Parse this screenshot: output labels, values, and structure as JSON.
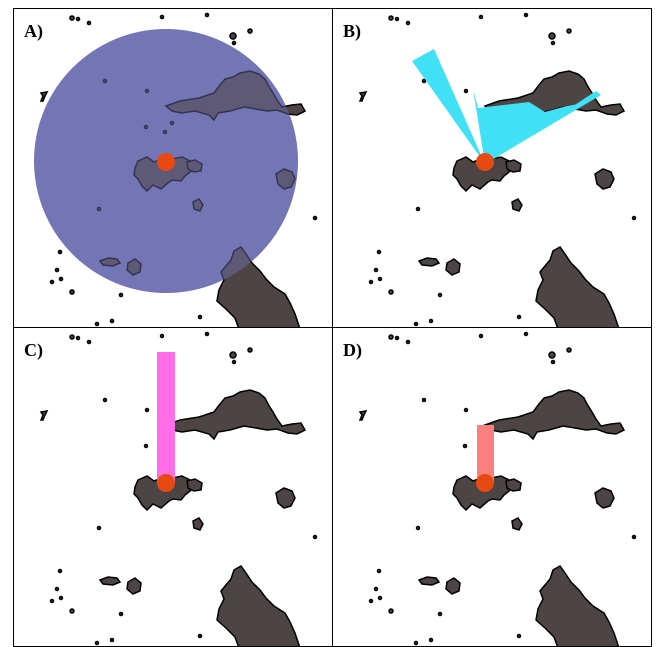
{
  "panels": [
    {
      "label": "A)",
      "overlay": "circle",
      "overlay_color": "#7375b5"
    },
    {
      "label": "B)",
      "overlay": "wedge",
      "overlay_color": "#40e0f5"
    },
    {
      "label": "C)",
      "overlay": "long-bar",
      "overlay_color": "#ff6ee6"
    },
    {
      "label": "D)",
      "overlay": "short-bar",
      "overlay_color": "#fa8080"
    }
  ],
  "colors": {
    "land": "#4d4544",
    "outline": "#000000",
    "marker": "#e64a10",
    "background": "#ffffff",
    "border": "#000000"
  }
}
